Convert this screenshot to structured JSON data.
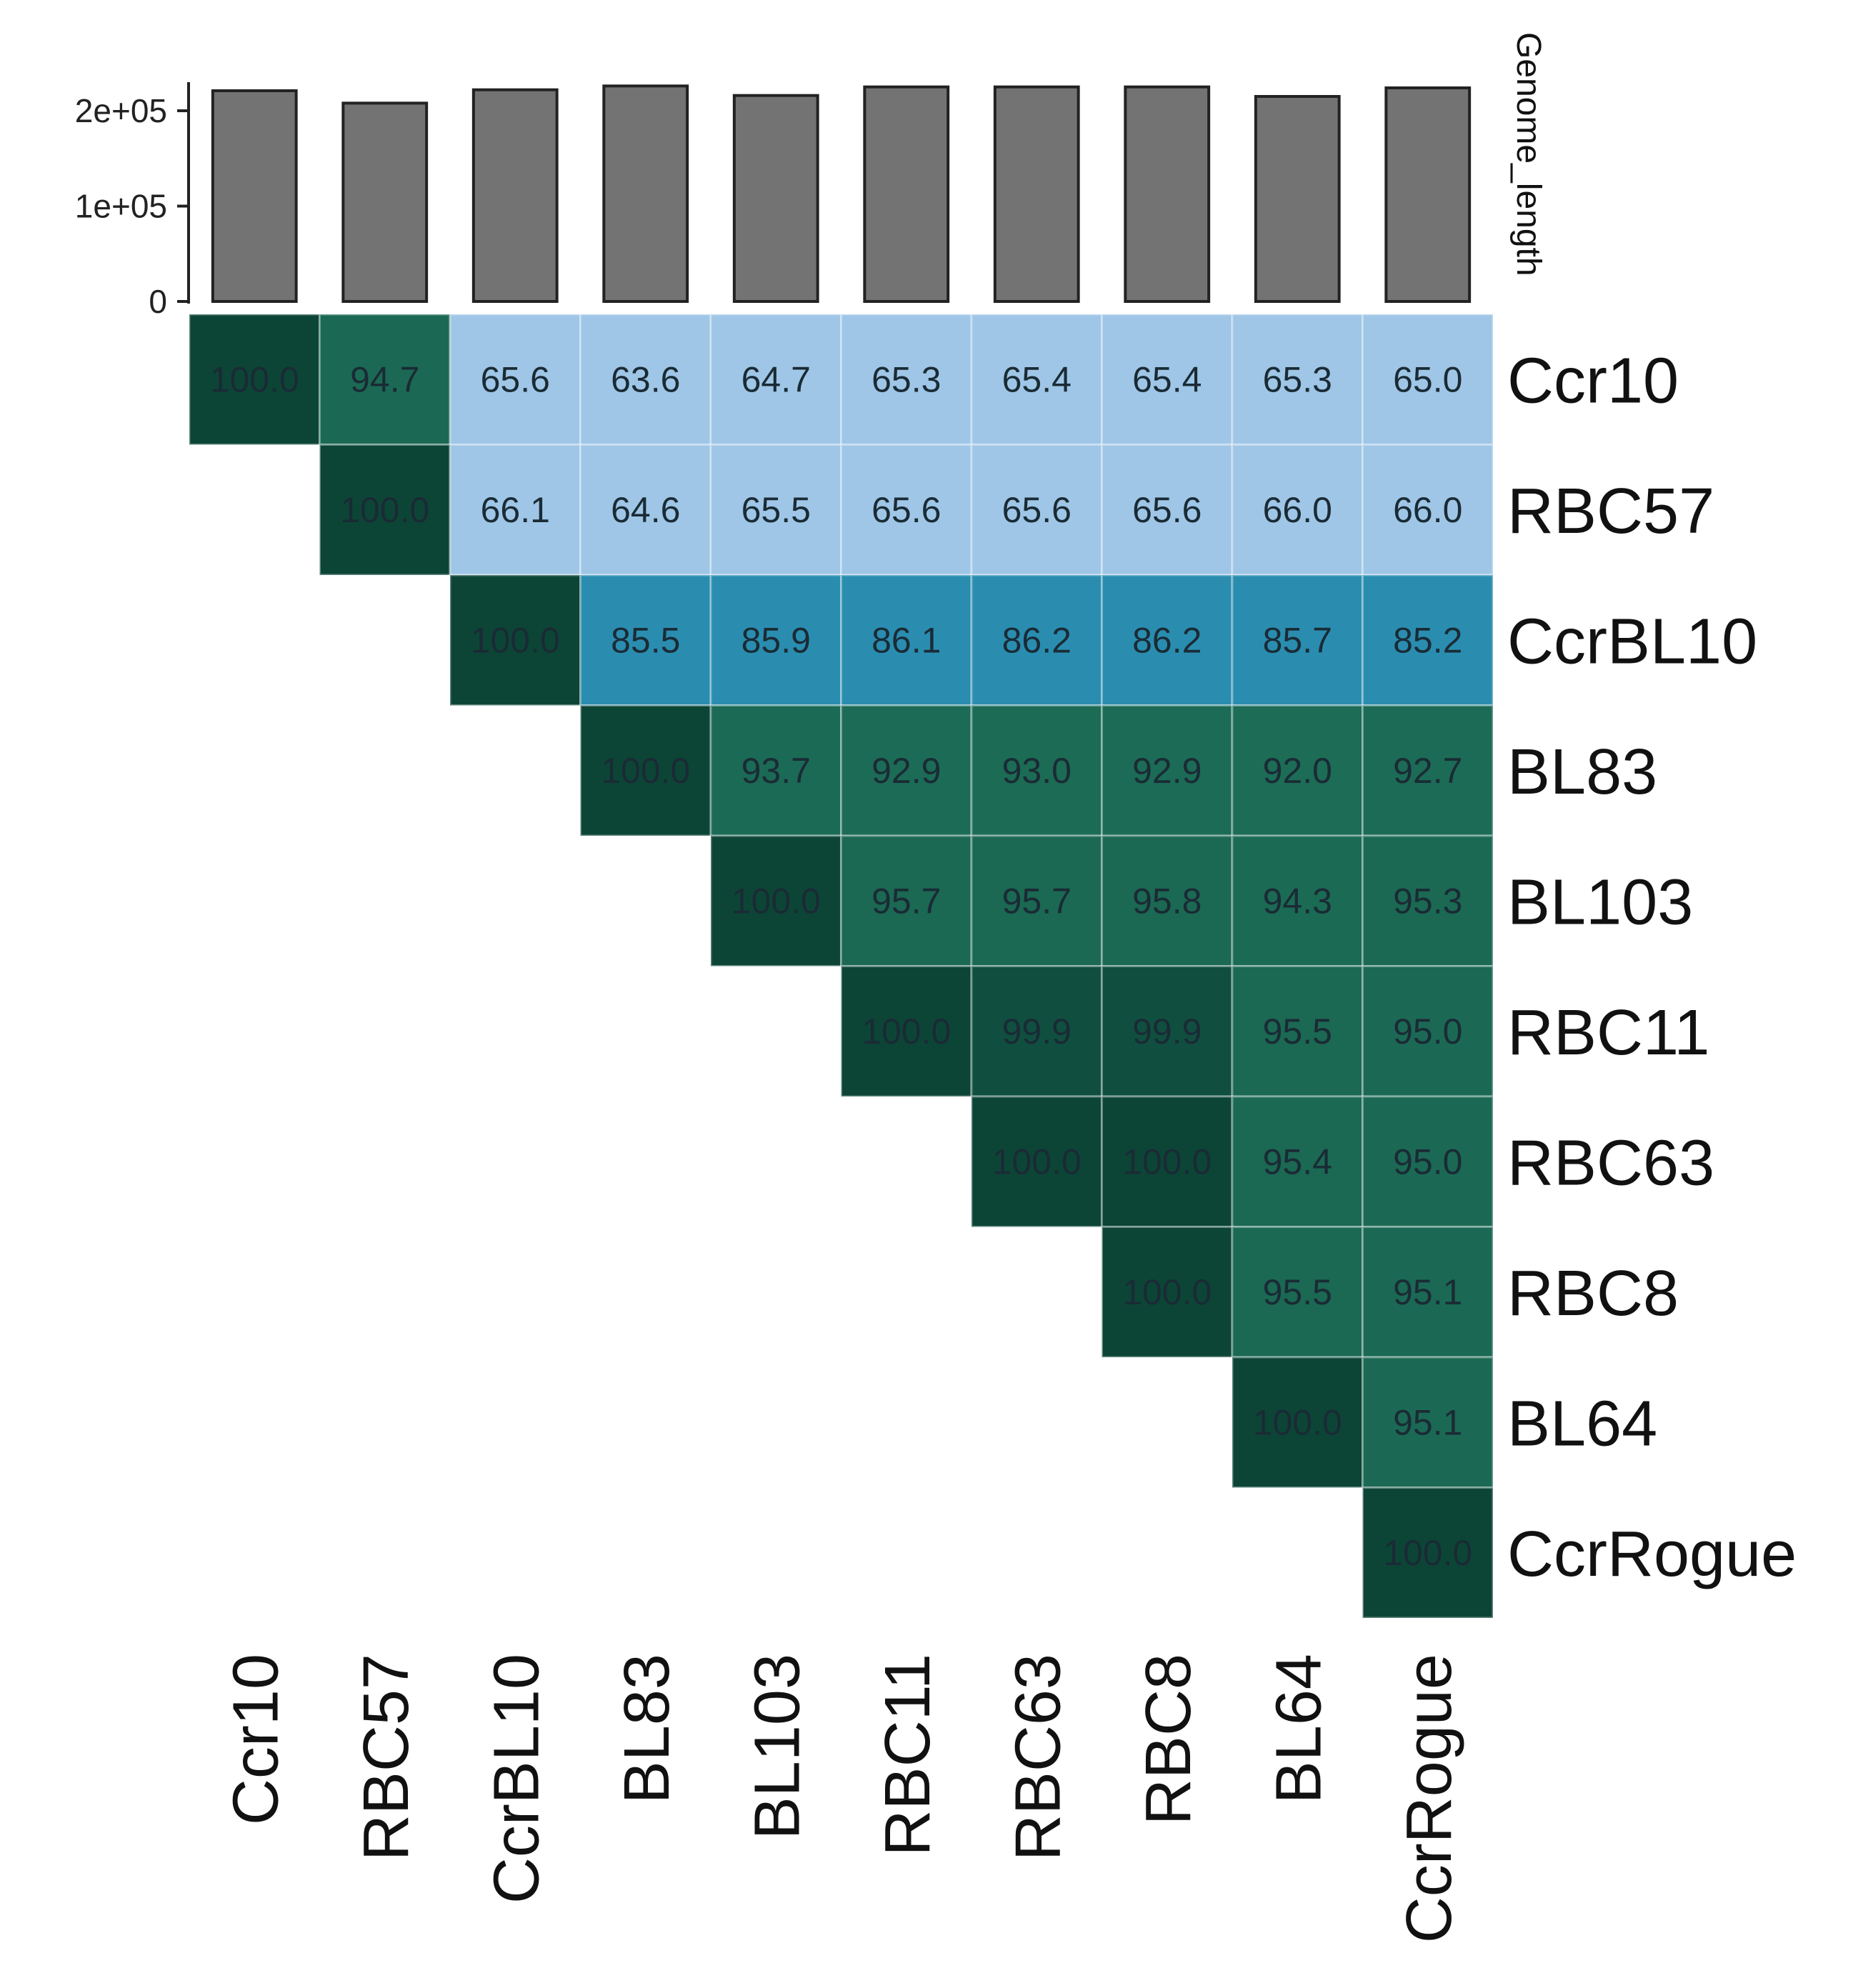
{
  "chart_data": [
    {
      "type": "bar",
      "title": "",
      "ylabel": "Genome_length",
      "xlabel": "",
      "ylim": [
        0,
        230000
      ],
      "y_ticks": [
        {
          "value": 0,
          "label": "0"
        },
        {
          "value": 100000,
          "label": "1e+05"
        },
        {
          "value": 200000,
          "label": "2e+05"
        }
      ],
      "categories": [
        "Ccr10",
        "RBC57",
        "CcrBL10",
        "BL83",
        "BL103",
        "RBC11",
        "RBC63",
        "RBC8",
        "BL64",
        "CcrRogue"
      ],
      "values": [
        221000,
        208000,
        222000,
        226000,
        216000,
        225000,
        225000,
        225000,
        215000,
        224000
      ],
      "grid": false,
      "colors": {
        "bar_fill": "#737373",
        "bar_stroke": "#222222"
      }
    },
    {
      "type": "heatmap",
      "title": "",
      "row_labels": [
        "Ccr10",
        "RBC57",
        "CcrBL10",
        "BL83",
        "BL103",
        "RBC11",
        "RBC63",
        "RBC8",
        "BL64",
        "CcrRogue"
      ],
      "col_labels": [
        "Ccr10",
        "RBC57",
        "CcrBL10",
        "BL83",
        "BL103",
        "RBC11",
        "RBC63",
        "RBC8",
        "BL64",
        "CcrRogue"
      ],
      "matrix": [
        [
          "100.0",
          "94.7",
          "65.6",
          "63.6",
          "64.7",
          "65.3",
          "65.4",
          "65.4",
          "65.3",
          "65.0"
        ],
        [
          null,
          "100.0",
          "66.1",
          "64.6",
          "65.5",
          "65.6",
          "65.6",
          "65.6",
          "66.0",
          "66.0"
        ],
        [
          null,
          null,
          "100.0",
          "85.5",
          "85.9",
          "86.1",
          "86.2",
          "86.2",
          "85.7",
          "85.2"
        ],
        [
          null,
          null,
          null,
          "100.0",
          "93.7",
          "92.9",
          "93.0",
          "92.9",
          "92.0",
          "92.7"
        ],
        [
          null,
          null,
          null,
          null,
          "100.0",
          "95.7",
          "95.7",
          "95.8",
          "94.3",
          "95.3"
        ],
        [
          null,
          null,
          null,
          null,
          null,
          "100.0",
          "99.9",
          "99.9",
          "95.5",
          "95.0"
        ],
        [
          null,
          null,
          null,
          null,
          null,
          null,
          "100.0",
          "100.0",
          "95.4",
          "95.0"
        ],
        [
          null,
          null,
          null,
          null,
          null,
          null,
          null,
          "100.0",
          "95.5",
          "95.1"
        ],
        [
          null,
          null,
          null,
          null,
          null,
          null,
          null,
          null,
          "100.0",
          "95.1"
        ],
        [
          null,
          null,
          null,
          null,
          null,
          null,
          null,
          null,
          null,
          "100.0"
        ]
      ],
      "color_scale": {
        "low": "#9fc6e6",
        "mid": "#2a8db0",
        "high_green": "#1d6e58",
        "top": "#0c4536"
      },
      "cell_text_color": "#1a2b35"
    }
  ]
}
